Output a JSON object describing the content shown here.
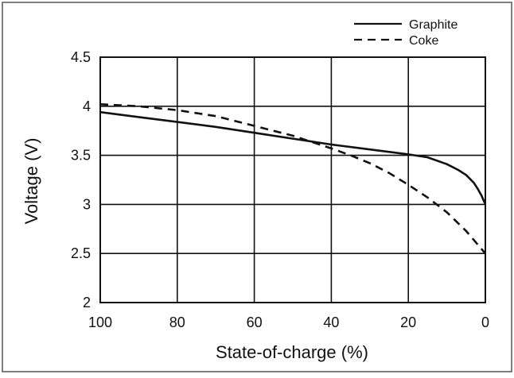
{
  "chart_data": {
    "type": "line",
    "title": "",
    "xlabel": "State-of-charge (%)",
    "ylabel": "Voltage (V)",
    "xlim": [
      100,
      0
    ],
    "ylim": [
      2,
      4.5
    ],
    "x_reversed": true,
    "xticks": [
      100,
      80,
      60,
      40,
      20,
      0
    ],
    "yticks": [
      2,
      2.5,
      3,
      3.5,
      4,
      4.5
    ],
    "xtick_labels": [
      "100",
      "80",
      "60",
      "40",
      "20",
      "0"
    ],
    "ytick_labels": [
      "2",
      "2.5",
      "3",
      "3.5",
      "4",
      "4.5"
    ],
    "grid": true,
    "legend_position": "top-right, outside plot area",
    "series": [
      {
        "name": "Graphite",
        "line_style": "solid",
        "color": "#111111",
        "x": [
          100,
          90,
          80,
          70,
          60,
          50,
          40,
          30,
          20,
          15,
          10,
          7,
          5,
          3,
          2,
          1,
          0
        ],
        "y": [
          3.94,
          3.89,
          3.84,
          3.79,
          3.73,
          3.67,
          3.61,
          3.56,
          3.51,
          3.48,
          3.41,
          3.35,
          3.3,
          3.22,
          3.16,
          3.09,
          3.0
        ]
      },
      {
        "name": "Coke",
        "line_style": "dashed",
        "color": "#111111",
        "x": [
          100,
          90,
          80,
          70,
          60,
          50,
          40,
          35,
          30,
          25,
          20,
          15,
          10,
          5,
          0
        ],
        "y": [
          4.02,
          4.0,
          3.96,
          3.9,
          3.8,
          3.7,
          3.57,
          3.5,
          3.42,
          3.32,
          3.2,
          3.07,
          2.92,
          2.73,
          2.5
        ]
      }
    ]
  },
  "colors": {
    "background": "#ffffff",
    "frame": "#555555",
    "grid": "#111111",
    "line": "#111111"
  }
}
